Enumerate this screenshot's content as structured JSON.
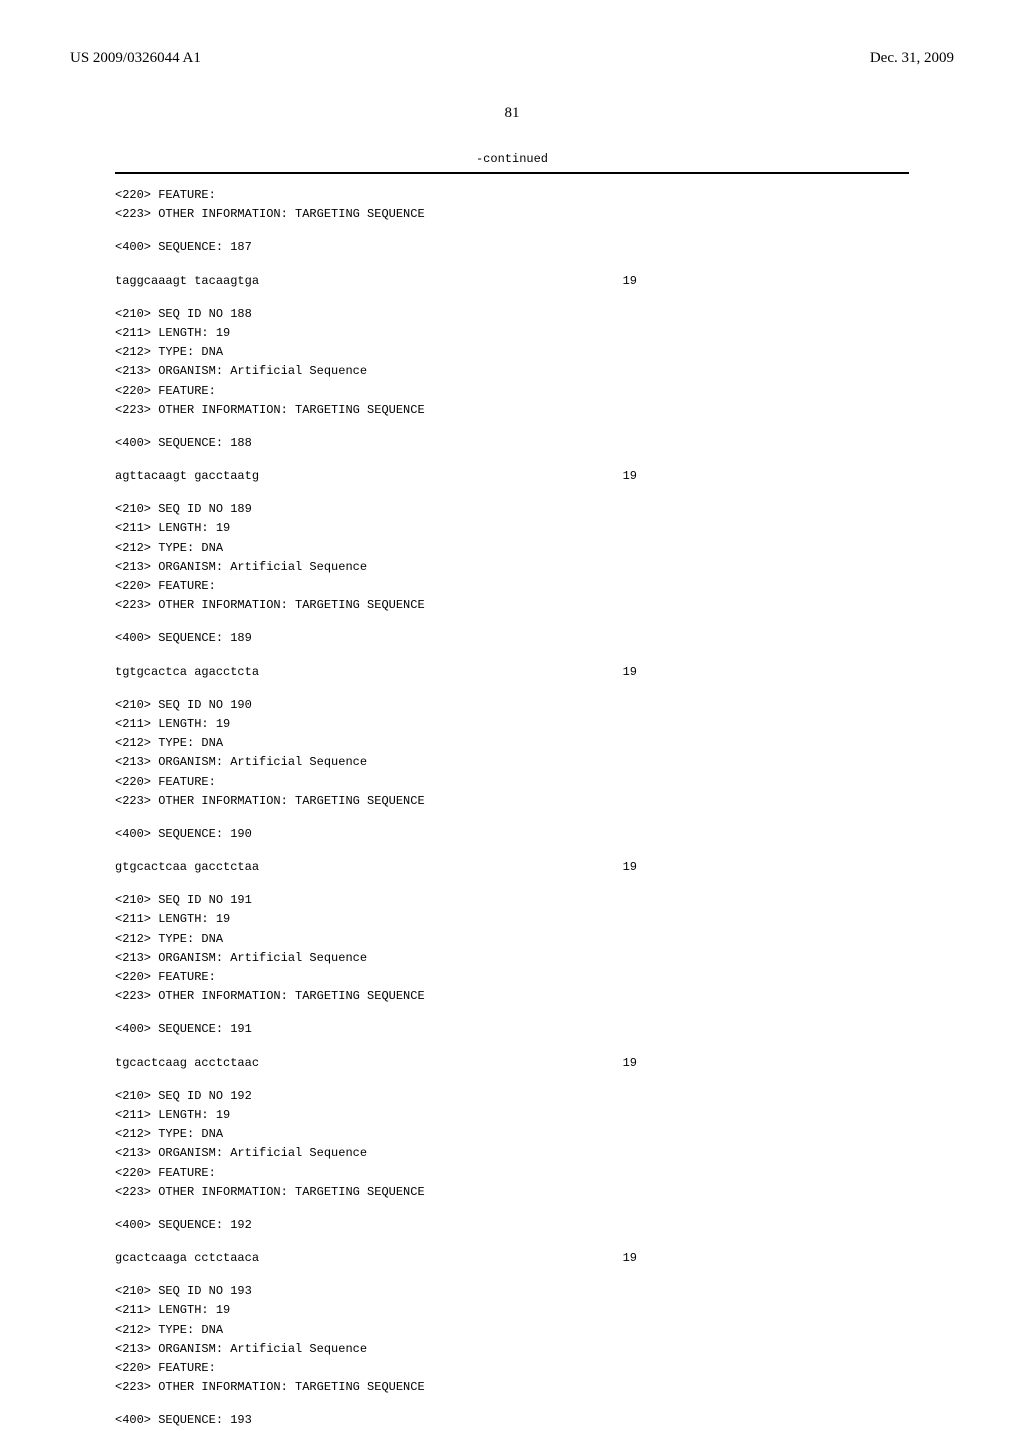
{
  "header": {
    "pub_number": "US 2009/0326044 A1",
    "pub_date": "Dec. 31, 2009"
  },
  "page_number": "81",
  "continued_label": "-continued",
  "blocks": [
    {
      "lines": [
        "<220> FEATURE:",
        "<223> OTHER INFORMATION: TARGETING SEQUENCE"
      ]
    },
    {
      "lines": [
        "<400> SEQUENCE: 187"
      ]
    },
    {
      "seq": "taggcaaagt tacaagtga",
      "len": "19"
    },
    {
      "lines": [
        "<210> SEQ ID NO 188",
        "<211> LENGTH: 19",
        "<212> TYPE: DNA",
        "<213> ORGANISM: Artificial Sequence",
        "<220> FEATURE:",
        "<223> OTHER INFORMATION: TARGETING SEQUENCE"
      ]
    },
    {
      "lines": [
        "<400> SEQUENCE: 188"
      ]
    },
    {
      "seq": "agttacaagt gacctaatg",
      "len": "19"
    },
    {
      "lines": [
        "<210> SEQ ID NO 189",
        "<211> LENGTH: 19",
        "<212> TYPE: DNA",
        "<213> ORGANISM: Artificial Sequence",
        "<220> FEATURE:",
        "<223> OTHER INFORMATION: TARGETING SEQUENCE"
      ]
    },
    {
      "lines": [
        "<400> SEQUENCE: 189"
      ]
    },
    {
      "seq": "tgtgcactca agacctcta",
      "len": "19"
    },
    {
      "lines": [
        "<210> SEQ ID NO 190",
        "<211> LENGTH: 19",
        "<212> TYPE: DNA",
        "<213> ORGANISM: Artificial Sequence",
        "<220> FEATURE:",
        "<223> OTHER INFORMATION: TARGETING SEQUENCE"
      ]
    },
    {
      "lines": [
        "<400> SEQUENCE: 190"
      ]
    },
    {
      "seq": "gtgcactcaa gacctctaa",
      "len": "19"
    },
    {
      "lines": [
        "<210> SEQ ID NO 191",
        "<211> LENGTH: 19",
        "<212> TYPE: DNA",
        "<213> ORGANISM: Artificial Sequence",
        "<220> FEATURE:",
        "<223> OTHER INFORMATION: TARGETING SEQUENCE"
      ]
    },
    {
      "lines": [
        "<400> SEQUENCE: 191"
      ]
    },
    {
      "seq": "tgcactcaag acctctaac",
      "len": "19"
    },
    {
      "lines": [
        "<210> SEQ ID NO 192",
        "<211> LENGTH: 19",
        "<212> TYPE: DNA",
        "<213> ORGANISM: Artificial Sequence",
        "<220> FEATURE:",
        "<223> OTHER INFORMATION: TARGETING SEQUENCE"
      ]
    },
    {
      "lines": [
        "<400> SEQUENCE: 192"
      ]
    },
    {
      "seq": "gcactcaaga cctctaaca",
      "len": "19"
    },
    {
      "lines": [
        "<210> SEQ ID NO 193",
        "<211> LENGTH: 19",
        "<212> TYPE: DNA",
        "<213> ORGANISM: Artificial Sequence",
        "<220> FEATURE:",
        "<223> OTHER INFORMATION: TARGETING SEQUENCE"
      ]
    },
    {
      "lines": [
        "<400> SEQUENCE: 193"
      ]
    }
  ]
}
